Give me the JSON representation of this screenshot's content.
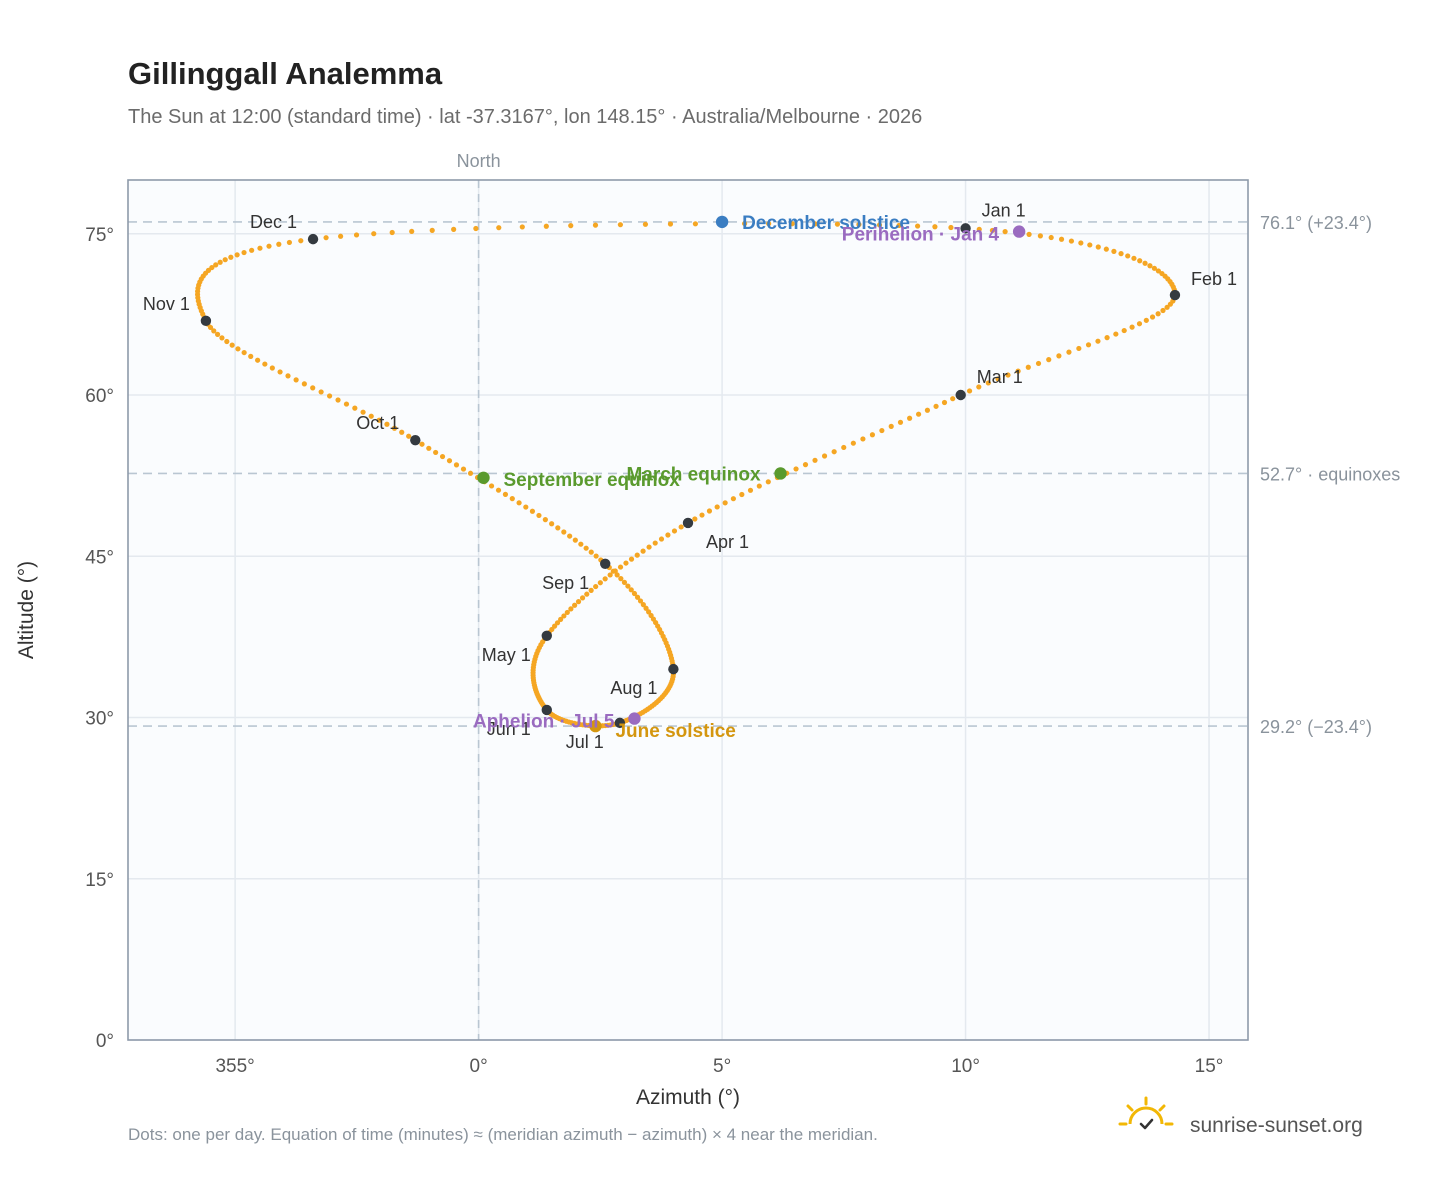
{
  "header": {
    "title": "Gillinggall Analemma",
    "subtitle": "The Sun at 12:00 (standard time) · lat -37.3167°, lon 148.15° · Australia/Melbourne · 2026"
  },
  "footer": {
    "note": "Dots: one per day. Equation of time (minutes) ≈ (meridian azimuth − azimuth) × 4 near the meridian.",
    "brand": "sunrise-sunset.org",
    "brand_icon": "sun-logo-icon"
  },
  "colors": {
    "curve": "#f5a623",
    "month_dot": "#343a40",
    "solstice_dec": "#3a7dc2",
    "solstice_jun": "#d4960f",
    "equinox": "#5a9a2e",
    "apsis": "#9a6bc0"
  },
  "chart_data": {
    "type": "scatter",
    "xlabel": "Azimuth (°)",
    "ylabel": "Altitude (°)",
    "xlim": [
      352.8,
      15.8
    ],
    "ylim": [
      0,
      80
    ],
    "x_ticks": [
      {
        "value": 355,
        "label": "355°"
      },
      {
        "value": 0,
        "label": "0°"
      },
      {
        "value": 5,
        "label": "5°"
      },
      {
        "value": 10,
        "label": "10°"
      },
      {
        "value": 15,
        "label": "15°"
      }
    ],
    "y_ticks": [
      {
        "value": 0,
        "label": "0°"
      },
      {
        "value": 15,
        "label": "15°"
      },
      {
        "value": 30,
        "label": "30°"
      },
      {
        "value": 45,
        "label": "45°"
      },
      {
        "value": 60,
        "label": "60°"
      },
      {
        "value": 75,
        "label": "75°"
      }
    ],
    "meridian": {
      "azimuth": 0,
      "label": "North"
    },
    "reference_lines": [
      {
        "altitude": 76.1,
        "label": "76.1° (+23.4°)"
      },
      {
        "altitude": 52.7,
        "label": "52.7° · equinoxes"
      },
      {
        "altitude": 29.2,
        "label": "29.2° (−23.4°)"
      }
    ],
    "months": [
      {
        "label": "Jan 1",
        "az": 10.0,
        "alt": 75.5
      },
      {
        "label": "Feb 1",
        "az": 14.3,
        "alt": 69.3
      },
      {
        "label": "Mar 1",
        "az": 9.9,
        "alt": 60.0
      },
      {
        "label": "Apr 1",
        "az": 4.3,
        "alt": 48.1
      },
      {
        "label": "May 1",
        "az": 1.4,
        "alt": 37.6
      },
      {
        "label": "Jun 1",
        "az": 1.4,
        "alt": 30.7
      },
      {
        "label": "Jul 1",
        "az": 2.9,
        "alt": 29.5
      },
      {
        "label": "Aug 1",
        "az": 4.0,
        "alt": 34.5
      },
      {
        "label": "Sep 1",
        "az": 2.6,
        "alt": 44.3
      },
      {
        "label": "Oct 1",
        "az": 358.7,
        "alt": 55.8
      },
      {
        "label": "Nov 1",
        "az": 354.4,
        "alt": 66.9
      },
      {
        "label": "Dec 1",
        "az": 356.6,
        "alt": 74.5
      }
    ],
    "events": [
      {
        "label": "December solstice",
        "az": 5.0,
        "alt": 76.1,
        "kind": "solstice_dec"
      },
      {
        "label": "Perihelion · Jan 4",
        "az": 11.1,
        "alt": 75.2,
        "kind": "apsis"
      },
      {
        "label": "March equinox",
        "az": 6.2,
        "alt": 52.7,
        "kind": "equinox"
      },
      {
        "label": "September equinox",
        "az": 0.1,
        "alt": 52.3,
        "kind": "equinox"
      },
      {
        "label": "June solstice",
        "az": 2.4,
        "alt": 29.2,
        "kind": "solstice_jun"
      },
      {
        "label": "Aphelion · Jul 5",
        "az": 3.2,
        "alt": 29.9,
        "kind": "apsis"
      }
    ]
  }
}
